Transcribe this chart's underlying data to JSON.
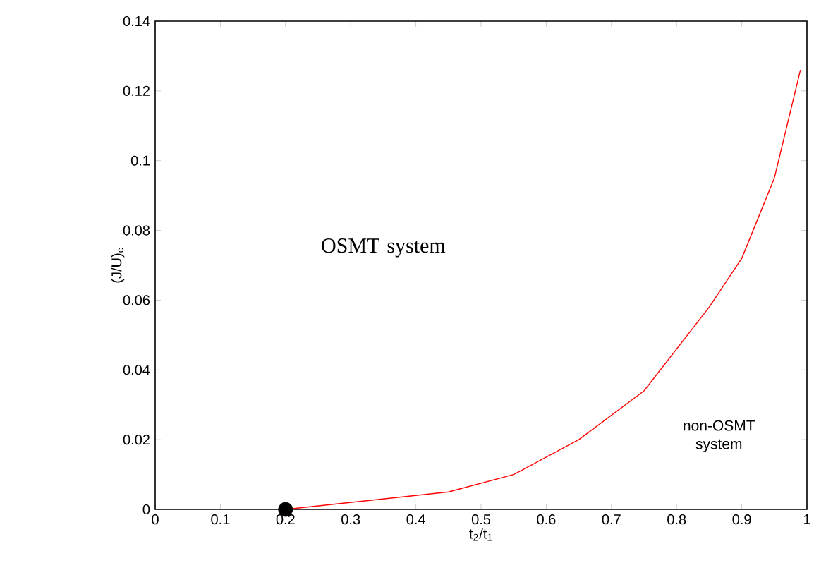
{
  "chart_data": {
    "type": "line",
    "xlabel": "t$_{2}$/t$_{1}$",
    "ylabel": "(J/U)$_{c}$",
    "xlim": [
      0,
      1
    ],
    "ylim": [
      0,
      0.14
    ],
    "xticks": [
      0,
      0.1,
      0.2,
      0.3,
      0.4,
      0.5,
      0.6,
      0.7,
      0.8,
      0.9,
      1
    ],
    "yticks": [
      0,
      0.02,
      0.04,
      0.06,
      0.08,
      0.1,
      0.12,
      0.14
    ],
    "grid": false,
    "annotations": [
      "OSMT system",
      "non-OSMT system"
    ],
    "series": [
      {
        "color": "#ff0000",
        "marker": "none",
        "x": [
          0.2,
          0.45,
          0.55,
          0.65,
          0.75,
          0.85,
          0.9,
          0.95,
          0.99
        ],
        "values": [
          0,
          0.005,
          0.01,
          0.02,
          0.034,
          0.058,
          0.072,
          0.095,
          0.126
        ]
      },
      {
        "type": "scatter",
        "color": "#000000",
        "marker": "circle",
        "x": [
          0.2
        ],
        "values": [
          0
        ]
      }
    ]
  }
}
